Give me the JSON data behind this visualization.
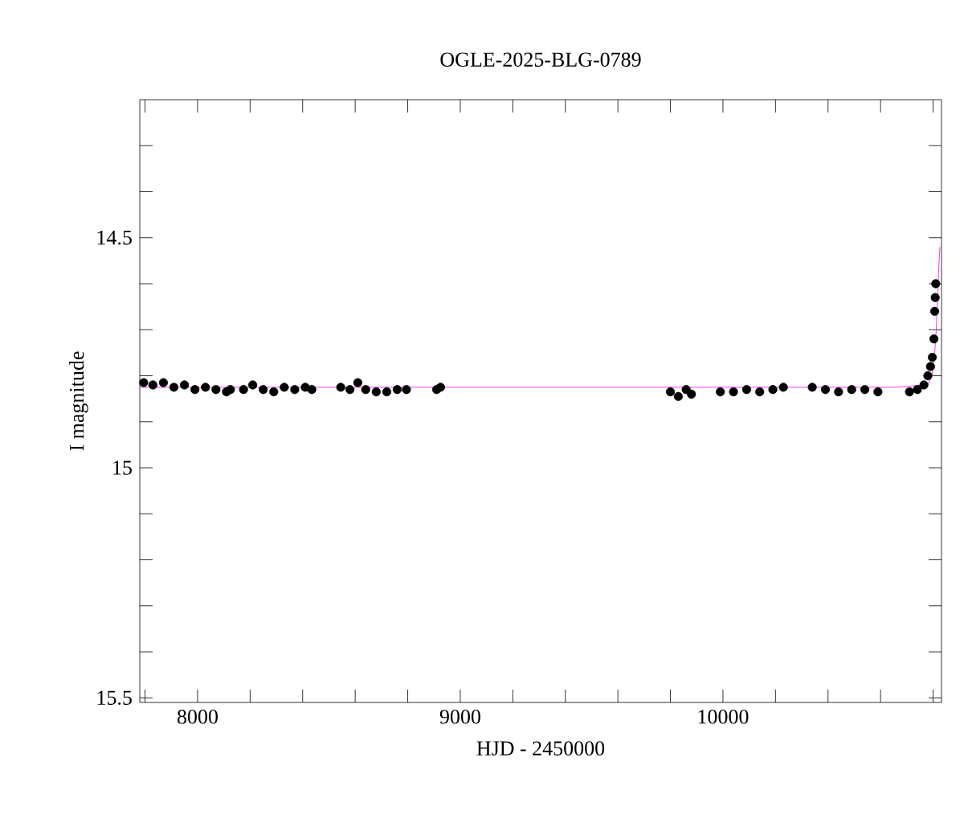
{
  "chart_data": {
    "type": "scatter",
    "title": "OGLE-2025-BLG-0789",
    "xlabel": "HJD - 2450000",
    "ylabel": "I magnitude",
    "xlim": [
      7780,
      10832
    ],
    "ylim": [
      15.51,
      14.2
    ],
    "xticks": [
      {
        "value": 7800,
        "label": null
      },
      8000,
      {
        "value": 8200,
        "label": null
      },
      {
        "value": 8400,
        "label": null
      },
      {
        "value": 8600,
        "label": null
      },
      {
        "value": 8800,
        "label": null
      },
      9000,
      {
        "value": 9200,
        "label": null
      },
      {
        "value": 9400,
        "label": null
      },
      {
        "value": 9600,
        "label": null
      },
      {
        "value": 9800,
        "label": null
      },
      10000,
      {
        "value": 10200,
        "label": null
      },
      {
        "value": 10400,
        "label": null
      },
      {
        "value": 10600,
        "label": null
      },
      {
        "value": 10800,
        "label": null
      }
    ],
    "yticks": [
      {
        "value": 14.3,
        "label": null
      },
      {
        "value": 14.4,
        "label": null
      },
      14.5,
      {
        "value": 14.6,
        "label": null
      },
      {
        "value": 14.7,
        "label": null
      },
      {
        "value": 14.8,
        "label": null
      },
      {
        "value": 14.9,
        "label": null
      },
      15,
      {
        "value": 15.1,
        "label": null
      },
      {
        "value": 15.2,
        "label": null
      },
      {
        "value": 15.3,
        "label": null
      },
      {
        "value": 15.4,
        "label": null
      },
      15.5
    ],
    "grid": false,
    "marker": "circle",
    "series": [
      {
        "color": "#000000",
        "x": [
          7795,
          7830,
          7870,
          7910,
          7950,
          7990,
          8030,
          8070,
          8110,
          8125,
          8175,
          8210,
          8250,
          8290,
          8330,
          8370,
          8410,
          8435,
          8545,
          8580,
          8610,
          8640,
          8680,
          8720,
          8760,
          8795,
          8910,
          8925,
          9800,
          9830,
          9860,
          9880,
          9990,
          10040,
          10090,
          10140,
          10190,
          10230,
          10340,
          10390,
          10440,
          10490,
          10540,
          10590,
          10710,
          10740,
          10765,
          10780,
          10790,
          10797,
          10803,
          10806,
          10808,
          10810
        ],
        "values": [
          14.815,
          14.82,
          14.815,
          14.825,
          14.82,
          14.83,
          14.825,
          14.83,
          14.835,
          14.83,
          14.83,
          14.82,
          14.83,
          14.835,
          14.825,
          14.83,
          14.825,
          14.83,
          14.825,
          14.83,
          14.815,
          14.83,
          14.835,
          14.835,
          14.83,
          14.83,
          14.83,
          14.825,
          14.835,
          14.845,
          14.83,
          14.84,
          14.835,
          14.835,
          14.83,
          14.835,
          14.83,
          14.825,
          14.825,
          14.83,
          14.835,
          14.83,
          14.83,
          14.835,
          14.835,
          14.83,
          14.82,
          14.8,
          14.78,
          14.76,
          14.72,
          14.66,
          14.63,
          14.6
        ]
      },
      {
        "type": "line",
        "color": "#ff00ff",
        "marker": "none",
        "x": [
          7780,
          10650,
          10780,
          10795,
          10805,
          10812,
          10818,
          10822,
          10826
        ],
        "values": [
          14.825,
          14.825,
          14.82,
          14.8,
          14.76,
          14.7,
          14.62,
          14.56,
          14.52
        ]
      }
    ]
  }
}
